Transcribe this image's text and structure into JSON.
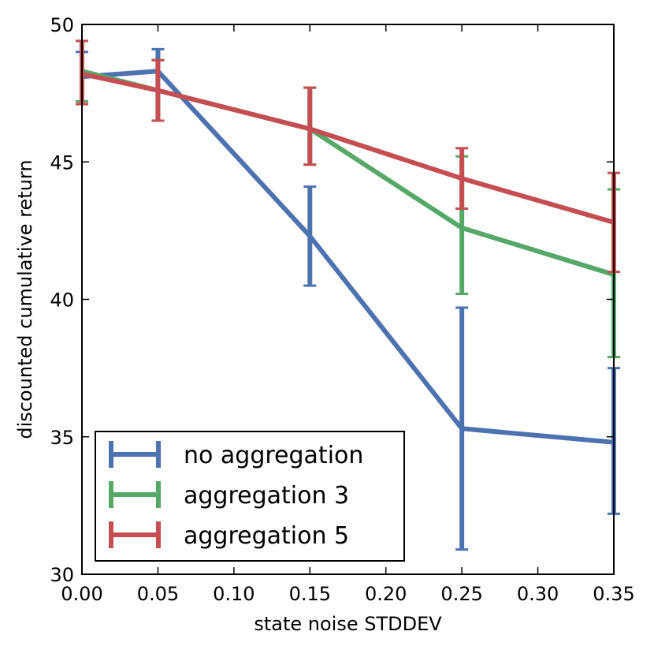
{
  "chart_data": {
    "type": "line",
    "title": "",
    "xlabel": "state noise STDDEV",
    "ylabel": "discounted cumulative return",
    "xlim": [
      0.0,
      0.35
    ],
    "ylim": [
      30,
      50
    ],
    "xticks": [
      "0.00",
      "0.05",
      "0.10",
      "0.15",
      "0.20",
      "0.25",
      "0.30",
      "0.35"
    ],
    "yticks": [
      "30",
      "35",
      "40",
      "45",
      "50"
    ],
    "x": [
      0.0,
      0.05,
      0.15,
      0.25,
      0.35
    ],
    "series": [
      {
        "name": "no aggregation",
        "color": "#4c72b0",
        "values": [
          48.1,
          48.3,
          42.3,
          35.3,
          34.8
        ],
        "err_low": [
          47.2,
          47.6,
          40.5,
          30.9,
          32.2
        ],
        "err_high": [
          49.0,
          49.1,
          44.1,
          39.7,
          37.5
        ]
      },
      {
        "name": "aggregation 3",
        "color": "#55a868",
        "values": [
          48.3,
          47.6,
          46.2,
          42.6,
          40.9
        ],
        "err_low": [
          47.2,
          46.5,
          44.9,
          40.2,
          37.9
        ],
        "err_high": [
          49.4,
          48.7,
          47.7,
          45.2,
          44.0
        ]
      },
      {
        "name": "aggregation 5",
        "color": "#c44e52",
        "values": [
          48.2,
          47.6,
          46.2,
          44.4,
          42.8
        ],
        "err_low": [
          47.1,
          46.5,
          44.9,
          43.3,
          41.0
        ],
        "err_high": [
          49.4,
          48.7,
          47.7,
          45.5,
          44.6
        ]
      }
    ],
    "legend": {
      "position": "lower-left",
      "entries": [
        "no aggregation",
        "aggregation 3",
        "aggregation 5"
      ]
    },
    "grid": false
  }
}
